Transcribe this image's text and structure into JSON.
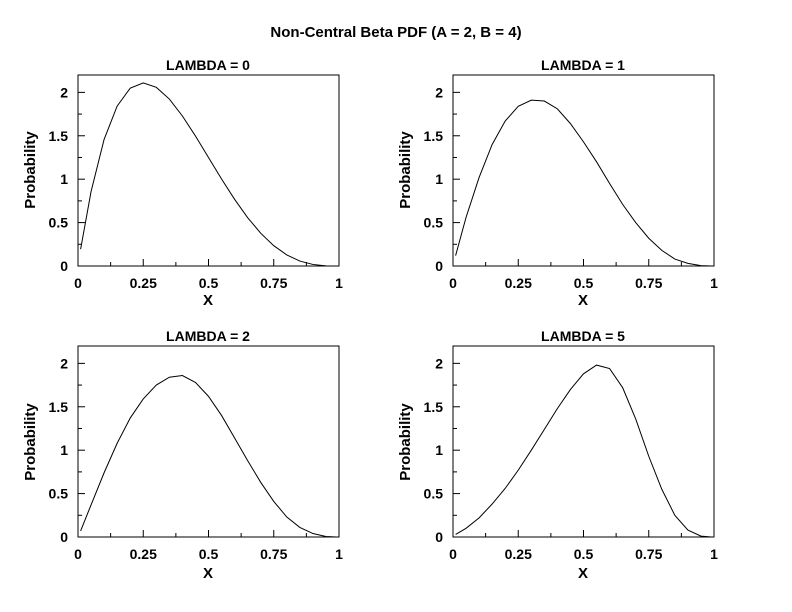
{
  "figure": {
    "title": "Non-Central Beta PDF (A = 2, B = 4)"
  },
  "chart_data": [
    {
      "type": "line",
      "title": "LAMBDA = 0",
      "xlabel": "X",
      "ylabel": "Probability",
      "xlim": [
        0,
        1
      ],
      "ylim": [
        0,
        2.2
      ],
      "xticks": [
        "0",
        "0.25",
        "0.5",
        "0.75",
        "1"
      ],
      "yticks": [
        "0",
        "0.5",
        "1",
        "1.5",
        "2"
      ],
      "x": [
        0.01,
        0.05,
        0.1,
        0.15,
        0.2,
        0.25,
        0.3,
        0.35,
        0.4,
        0.45,
        0.5,
        0.55,
        0.6,
        0.65,
        0.7,
        0.75,
        0.8,
        0.85,
        0.9,
        0.95,
        0.99
      ],
      "y": [
        0.194,
        0.857,
        1.458,
        1.842,
        2.048,
        2.109,
        2.058,
        1.923,
        1.728,
        1.497,
        1.25,
        1.002,
        0.768,
        0.557,
        0.378,
        0.234,
        0.128,
        0.057,
        0.018,
        0.002,
        0.0
      ],
      "series": [
        {
          "values": [
            0.194,
            0.857,
            1.458,
            1.842,
            2.048,
            2.109,
            2.058,
            1.923,
            1.728,
            1.497,
            1.25,
            1.002,
            0.768,
            0.557,
            0.378,
            0.234,
            0.128,
            0.057,
            0.018,
            0.002,
            0.0
          ]
        }
      ]
    },
    {
      "type": "line",
      "title": "LAMBDA = 1",
      "xlabel": "X",
      "ylabel": "Probability",
      "xlim": [
        0,
        1
      ],
      "ylim": [
        0,
        2.2
      ],
      "xticks": [
        "0",
        "0.25",
        "0.5",
        "0.75",
        "1"
      ],
      "yticks": [
        "0",
        "0.5",
        "1",
        "1.5",
        "2"
      ],
      "x": [
        0.01,
        0.05,
        0.1,
        0.15,
        0.2,
        0.25,
        0.3,
        0.35,
        0.4,
        0.45,
        0.5,
        0.55,
        0.6,
        0.65,
        0.7,
        0.75,
        0.8,
        0.85,
        0.9,
        0.95,
        0.99
      ],
      "y": [
        0.12,
        0.56,
        1.02,
        1.4,
        1.67,
        1.84,
        1.91,
        1.9,
        1.81,
        1.64,
        1.43,
        1.2,
        0.95,
        0.71,
        0.5,
        0.32,
        0.18,
        0.08,
        0.03,
        0.005,
        0.0
      ]
    },
    {
      "type": "line",
      "title": "LAMBDA = 2",
      "xlabel": "X",
      "ylabel": "Probability",
      "xlim": [
        0,
        1
      ],
      "ylim": [
        0,
        2.2
      ],
      "xticks": [
        "0",
        "0.25",
        "0.5",
        "0.75",
        "1"
      ],
      "yticks": [
        "0",
        "0.5",
        "1",
        "1.5",
        "2"
      ],
      "x": [
        0.01,
        0.05,
        0.1,
        0.15,
        0.2,
        0.25,
        0.3,
        0.35,
        0.4,
        0.45,
        0.5,
        0.55,
        0.6,
        0.65,
        0.7,
        0.75,
        0.8,
        0.85,
        0.9,
        0.95,
        0.99
      ],
      "y": [
        0.07,
        0.37,
        0.74,
        1.08,
        1.37,
        1.59,
        1.75,
        1.84,
        1.86,
        1.78,
        1.62,
        1.4,
        1.14,
        0.88,
        0.63,
        0.41,
        0.23,
        0.11,
        0.04,
        0.006,
        0.0
      ]
    },
    {
      "type": "line",
      "title": "LAMBDA = 5",
      "xlabel": "X",
      "ylabel": "Probability",
      "xlim": [
        0,
        1
      ],
      "ylim": [
        0,
        2.2
      ],
      "xticks": [
        "0",
        "0.25",
        "0.5",
        "0.75",
        "1"
      ],
      "yticks": [
        "0",
        "0.5",
        "1",
        "1.5",
        "2"
      ],
      "x": [
        0.01,
        0.05,
        0.1,
        0.15,
        0.2,
        0.25,
        0.3,
        0.35,
        0.4,
        0.45,
        0.5,
        0.55,
        0.6,
        0.65,
        0.7,
        0.75,
        0.8,
        0.85,
        0.9,
        0.95,
        0.99
      ],
      "y": [
        0.03,
        0.1,
        0.22,
        0.38,
        0.56,
        0.77,
        1.0,
        1.24,
        1.48,
        1.7,
        1.88,
        1.98,
        1.94,
        1.72,
        1.36,
        0.93,
        0.55,
        0.25,
        0.08,
        0.01,
        0.0
      ]
    }
  ]
}
